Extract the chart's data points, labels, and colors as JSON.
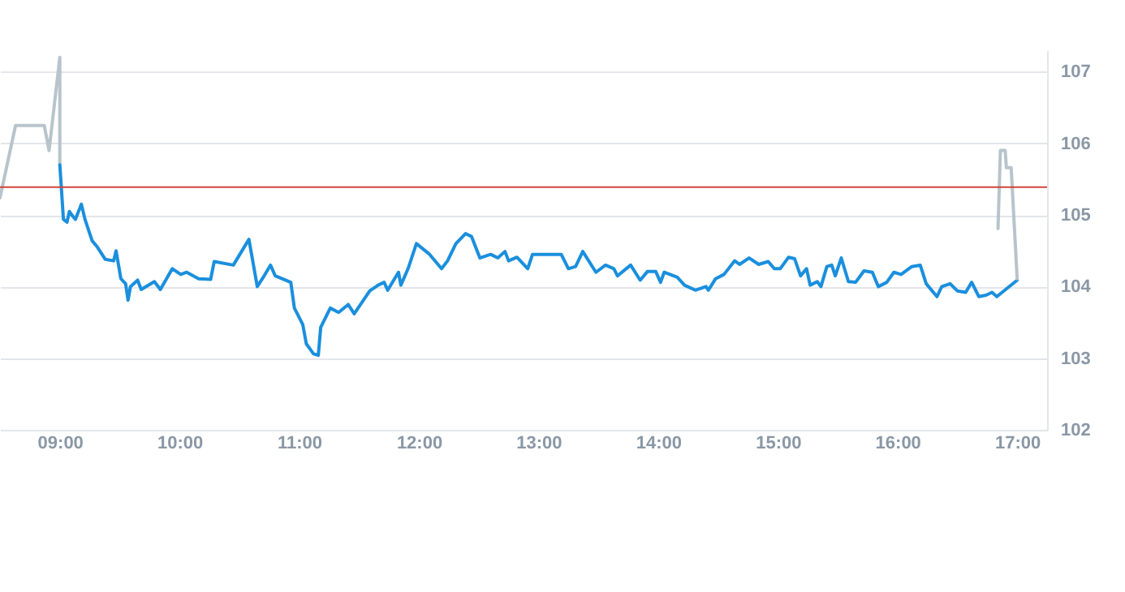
{
  "chart_data": {
    "type": "line",
    "xlim": [
      8.5,
      17.25
    ],
    "ylim": [
      102,
      107.3
    ],
    "xticks": [
      {
        "value": 9,
        "label": "09:00"
      },
      {
        "value": 10,
        "label": "10:00"
      },
      {
        "value": 11,
        "label": "11:00"
      },
      {
        "value": 12,
        "label": "12:00"
      },
      {
        "value": 13,
        "label": "13:00"
      },
      {
        "value": 14,
        "label": "14:00"
      },
      {
        "value": 15,
        "label": "15:00"
      },
      {
        "value": 16,
        "label": "16:00"
      },
      {
        "value": 17,
        "label": "17:00"
      }
    ],
    "yticks": [
      102,
      103,
      104,
      105,
      106,
      107
    ],
    "grid": "y",
    "marker": "none",
    "line_style": "solid",
    "ref_lines": [
      {
        "axis": "y",
        "value": 105.39,
        "color": "#d0453a"
      }
    ],
    "series": [
      {
        "color": "#b8c4cc",
        "x": [
          8.5,
          8.63,
          8.87,
          8.91,
          9.0,
          9.0
        ],
        "values": [
          105.24,
          106.25,
          106.25,
          105.9,
          107.2,
          105.7
        ]
      },
      {
        "color": "#1a8fdd",
        "x": [
          9.0,
          9.03,
          9.06,
          9.08,
          9.1,
          9.13,
          9.18,
          9.21,
          9.27,
          9.31,
          9.38,
          9.45,
          9.47,
          9.51,
          9.55,
          9.57,
          9.59,
          9.65,
          9.68,
          9.79,
          9.84,
          9.94,
          10.01,
          10.06,
          10.16,
          10.26,
          10.29,
          10.45,
          10.58,
          10.65,
          10.7,
          10.76,
          10.8,
          10.93,
          10.96,
          11.03,
          11.06,
          11.12,
          11.16,
          11.18,
          11.26,
          11.33,
          11.41,
          11.46,
          11.59,
          11.66,
          11.71,
          11.74,
          11.83,
          11.85,
          11.91,
          11.98,
          12.09,
          12.19,
          12.24,
          12.31,
          12.39,
          12.44,
          12.51,
          12.6,
          12.66,
          12.72,
          12.75,
          12.82,
          12.91,
          12.95,
          13.19,
          13.25,
          13.31,
          13.37,
          13.48,
          13.56,
          13.63,
          13.66,
          13.77,
          13.85,
          13.91,
          13.98,
          14.02,
          14.05,
          14.16,
          14.22,
          14.31,
          14.4,
          14.42,
          14.48,
          14.55,
          14.64,
          14.68,
          14.76,
          14.84,
          14.92,
          14.97,
          15.02,
          15.09,
          15.14,
          15.19,
          15.24,
          15.27,
          15.33,
          15.36,
          15.41,
          15.45,
          15.48,
          15.53,
          15.59,
          15.65,
          15.72,
          15.79,
          15.84,
          15.91,
          15.97,
          16.03,
          16.12,
          16.19,
          16.24,
          16.33,
          16.37,
          16.44,
          16.5,
          16.57,
          16.62,
          16.68,
          16.74,
          16.79,
          16.83,
          17.0
        ],
        "values": [
          105.7,
          104.94,
          104.9,
          105.05,
          105.0,
          104.94,
          105.15,
          104.94,
          104.64,
          104.56,
          104.38,
          104.36,
          104.5,
          104.11,
          104.04,
          103.81,
          104.0,
          104.09,
          103.96,
          104.07,
          103.96,
          104.25,
          104.17,
          104.2,
          104.11,
          104.1,
          104.35,
          104.3,
          104.66,
          104.0,
          104.13,
          104.3,
          104.15,
          104.06,
          103.7,
          103.47,
          103.2,
          103.06,
          103.04,
          103.43,
          103.7,
          103.64,
          103.75,
          103.62,
          103.94,
          104.02,
          104.06,
          103.95,
          104.2,
          104.02,
          104.25,
          104.6,
          104.45,
          104.25,
          104.36,
          104.6,
          104.74,
          104.7,
          104.4,
          104.45,
          104.4,
          104.49,
          104.36,
          104.41,
          104.25,
          104.45,
          104.45,
          104.25,
          104.28,
          104.49,
          104.2,
          104.3,
          104.25,
          104.15,
          104.3,
          104.09,
          104.21,
          104.21,
          104.06,
          104.2,
          104.13,
          104.02,
          103.95,
          104.0,
          103.95,
          104.11,
          104.17,
          104.36,
          104.31,
          104.4,
          104.31,
          104.35,
          104.25,
          104.25,
          104.41,
          104.39,
          104.15,
          104.25,
          104.02,
          104.07,
          104.0,
          104.28,
          104.3,
          104.15,
          104.4,
          104.07,
          104.06,
          104.22,
          104.2,
          104.0,
          104.06,
          104.2,
          104.17,
          104.28,
          104.3,
          104.04,
          103.86,
          104.0,
          104.04,
          103.94,
          103.92,
          104.06,
          103.86,
          103.88,
          103.92,
          103.86,
          104.09
        ]
      },
      {
        "color": "#b8c4cc",
        "x": [
          16.84,
          16.86,
          16.9,
          16.91,
          16.95,
          17.0
        ],
        "values": [
          104.81,
          105.9,
          105.9,
          105.66,
          105.66,
          104.11
        ]
      }
    ]
  }
}
